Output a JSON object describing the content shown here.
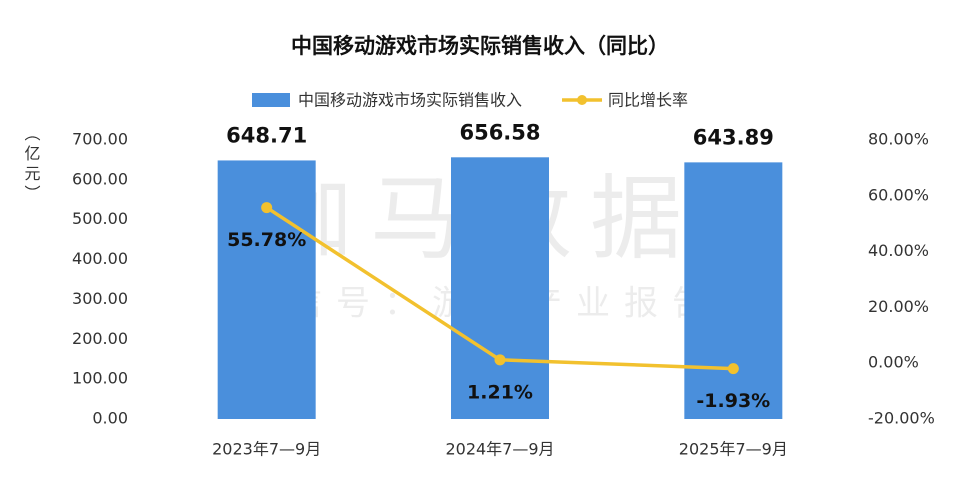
{
  "chart_data": {
    "type": "bar-line",
    "title": "中国移动游戏市场实际销售收入（同比）",
    "ylabel": "（亿元）",
    "watermark": [
      "伽马数据",
      "微信号：游戏产业报告"
    ],
    "categories": [
      "2023年7—9月",
      "2024年7—9月",
      "2025年7—9月"
    ],
    "series": [
      {
        "name": "中国移动游戏市场实际销售收入",
        "type": "bar",
        "color": "#4a8fdc",
        "values": [
          648.71,
          656.58,
          643.89
        ]
      },
      {
        "name": "同比增长率",
        "type": "line",
        "axis": "y2",
        "color": "#f2c12e",
        "values": [
          55.78,
          1.21,
          -1.93
        ],
        "value_labels": [
          "55.78%",
          "1.21%",
          "-1.93%"
        ]
      }
    ],
    "ylim": [
      0,
      700
    ],
    "yticks": [
      {
        "value": 0,
        "label": "0.00"
      },
      {
        "value": 100,
        "label": "100.00"
      },
      {
        "value": 200,
        "label": "200.00"
      },
      {
        "value": 300,
        "label": "300.00"
      },
      {
        "value": 400,
        "label": "400.00"
      },
      {
        "value": 500,
        "label": "500.00"
      },
      {
        "value": 600,
        "label": "600.00"
      },
      {
        "value": 700,
        "label": "700.00"
      }
    ],
    "y2lim": [
      -20,
      80
    ],
    "y2ticks": [
      {
        "value": -20,
        "label": "-20.00%"
      },
      {
        "value": 0,
        "label": "0.00%"
      },
      {
        "value": 20,
        "label": "20.00%"
      },
      {
        "value": 40,
        "label": "40.00%"
      },
      {
        "value": 60,
        "label": "60.00%"
      },
      {
        "value": 80,
        "label": "80.00%"
      }
    ],
    "legend": "top",
    "grid": false
  }
}
